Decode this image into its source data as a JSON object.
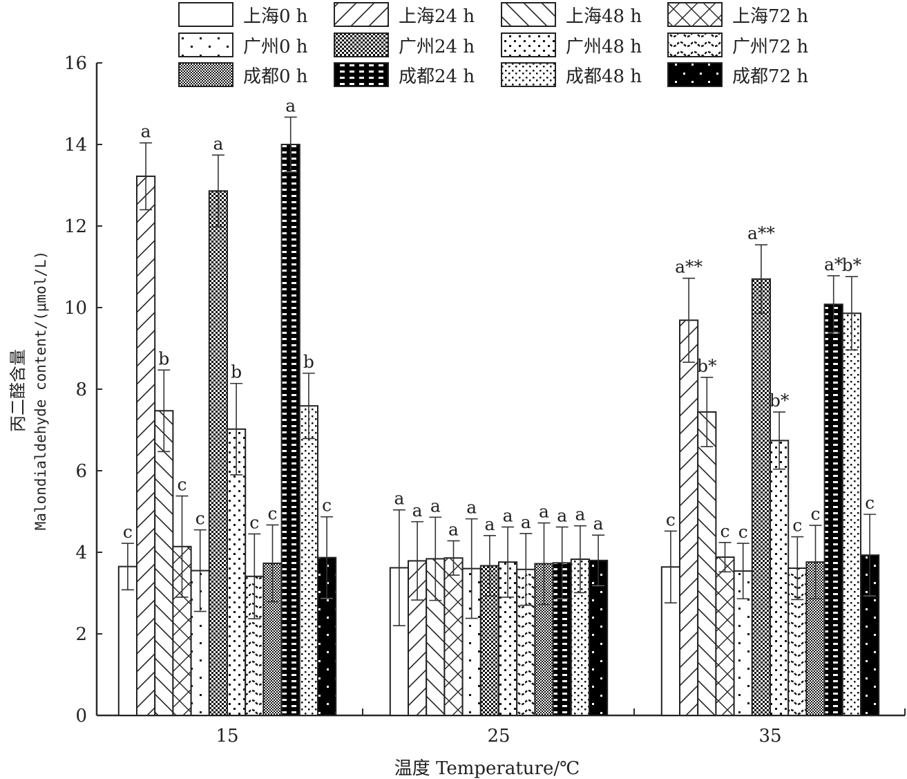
{
  "chart_data": {
    "type": "bar",
    "title": "",
    "xlabel": "温度 Temperature/℃",
    "ylabel_cn": "丙二醛含量",
    "ylabel_en": "Malondialdehyde content/(μmol/L)",
    "ylim": [
      0,
      16
    ],
    "yticks": [
      "0",
      "2",
      "4",
      "6",
      "8",
      "10",
      "12",
      "14",
      "16"
    ],
    "ytick_values": [
      0,
      2,
      4,
      6,
      8,
      10,
      12,
      14,
      16
    ],
    "categories": [
      "15",
      "25",
      "35"
    ],
    "legend_position": "top",
    "series": [
      {
        "name": "上海0 h",
        "pattern": "blank",
        "values": [
          3.65,
          3.62,
          3.64
        ],
        "errors": [
          0.57,
          1.42,
          0.88
        ],
        "labels": [
          "c",
          "a",
          "c"
        ]
      },
      {
        "name": "上海24 h",
        "pattern": "diag-fwd",
        "values": [
          13.22,
          3.79,
          9.69
        ],
        "errors": [
          0.82,
          0.96,
          1.03
        ],
        "labels": [
          "a",
          "a",
          "a**"
        ]
      },
      {
        "name": "上海48 h",
        "pattern": "diag-back",
        "values": [
          7.47,
          3.84,
          7.44
        ],
        "errors": [
          1.0,
          1.02,
          0.85
        ],
        "labels": [
          "b",
          "a",
          "b*"
        ]
      },
      {
        "name": "上海72 h",
        "pattern": "cross",
        "values": [
          4.14,
          3.86,
          3.88
        ],
        "errors": [
          1.24,
          0.42,
          0.36
        ],
        "labels": [
          "c",
          "a",
          "c"
        ]
      },
      {
        "name": "广州0 h",
        "pattern": "sparse-dots",
        "values": [
          3.55,
          3.6,
          3.54
        ],
        "errors": [
          1.0,
          1.22,
          0.68
        ],
        "labels": [
          "c",
          "a",
          "c"
        ]
      },
      {
        "name": "广州24 h",
        "pattern": "checker",
        "values": [
          12.86,
          3.67,
          10.7
        ],
        "errors": [
          0.88,
          0.74,
          0.84
        ],
        "labels": [
          "a",
          "a",
          "a**"
        ]
      },
      {
        "name": "广州48 h",
        "pattern": "dots",
        "values": [
          7.02,
          3.76,
          6.74
        ],
        "errors": [
          1.12,
          0.86,
          0.7
        ],
        "labels": [
          "b",
          "a",
          "b*"
        ]
      },
      {
        "name": "广州72 h",
        "pattern": "wave",
        "values": [
          3.41,
          3.58,
          3.61
        ],
        "errors": [
          1.04,
          0.88,
          0.77
        ],
        "labels": [
          "c",
          "a",
          "c"
        ]
      },
      {
        "name": "成都0 h",
        "pattern": "checker-fine",
        "values": [
          3.73,
          3.72,
          3.76
        ],
        "errors": [
          0.94,
          1.0,
          0.9
        ],
        "labels": [
          "c",
          "a",
          "c"
        ]
      },
      {
        "name": "成都24 h",
        "pattern": "black-dash",
        "values": [
          14.0,
          3.74,
          10.08
        ],
        "errors": [
          0.67,
          0.88,
          0.7
        ],
        "labels": [
          "a",
          "a",
          "a*"
        ]
      },
      {
        "name": "成都48 h",
        "pattern": "dots-dense",
        "values": [
          7.59,
          3.83,
          9.86
        ],
        "errors": [
          0.8,
          0.82,
          0.9
        ],
        "labels": [
          "b",
          "a",
          "b*"
        ]
      },
      {
        "name": "成都72 h",
        "pattern": "black-dots",
        "values": [
          3.87,
          3.8,
          3.93
        ],
        "errors": [
          1.0,
          0.62,
          1.0
        ],
        "labels": [
          "c",
          "a",
          "c"
        ]
      }
    ]
  },
  "colors": {
    "axis": "#2a2a2a",
    "bar_stroke": "#222222",
    "black": "#000000",
    "white": "#ffffff"
  }
}
